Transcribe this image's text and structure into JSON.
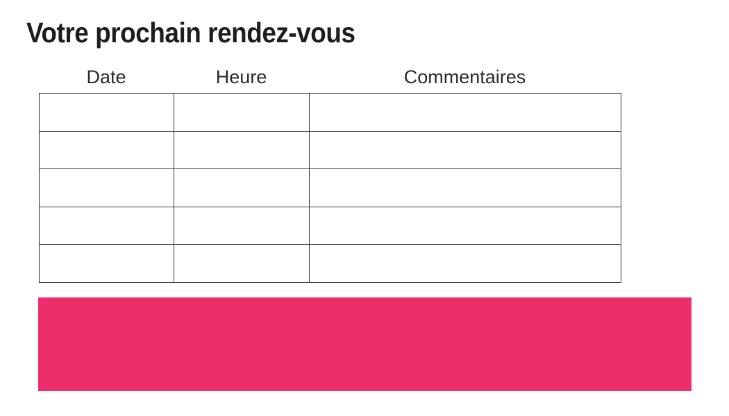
{
  "page": {
    "title": "Votre prochain rendez-vous"
  },
  "colors": {
    "accent_pink": "#ED2E6B",
    "table_border": "#3b3b3b",
    "title_text": "#1d1d1b",
    "header_text": "#2a2a2a",
    "page_bg": "#ffffff"
  },
  "table": {
    "headers": [
      {
        "label": "Date"
      },
      {
        "label": "Heure"
      },
      {
        "label": "Commentaires"
      }
    ],
    "rows": [
      {
        "date": "",
        "heure": "",
        "commentaires": ""
      },
      {
        "date": "",
        "heure": "",
        "commentaires": ""
      },
      {
        "date": "",
        "heure": "",
        "commentaires": ""
      },
      {
        "date": "",
        "heure": "",
        "commentaires": ""
      },
      {
        "date": "",
        "heure": "",
        "commentaires": ""
      }
    ]
  },
  "banner": {
    "text": ""
  }
}
